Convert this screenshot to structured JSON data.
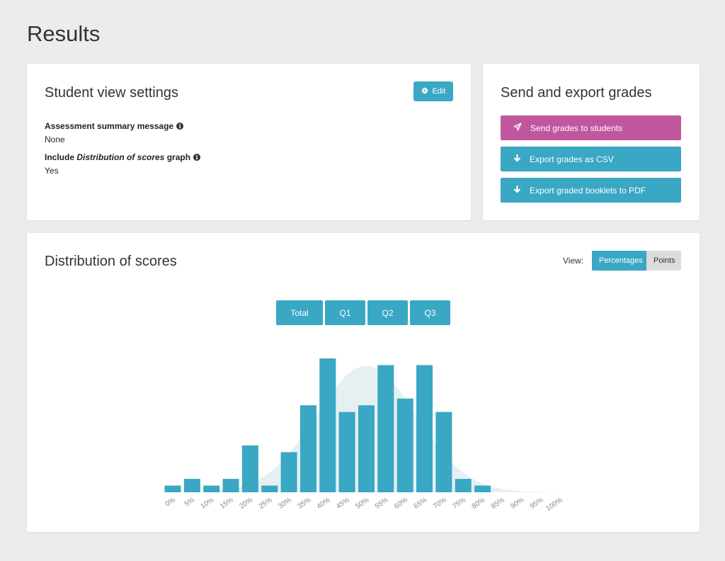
{
  "page": {
    "title": "Results"
  },
  "settings": {
    "title": "Student view settings",
    "edit_label": "Edit",
    "summary_label": "Assessment summary message",
    "summary_value": "None",
    "include_prefix": "Include ",
    "include_em": "Distribution of scores",
    "include_suffix": " graph",
    "include_value": "Yes"
  },
  "export": {
    "title": "Send and export grades",
    "send_label": "Send grades to students",
    "csv_label": "Export grades as CSV",
    "pdf_label": "Export graded booklets to PDF",
    "send_color": "#c0579e",
    "accent_color": "#3aa7c4"
  },
  "distribution": {
    "title": "Distribution of scores",
    "view_label": "View:",
    "view_options": [
      "Percentages",
      "Points"
    ],
    "view_selected": "Percentages",
    "tabs": [
      "Total",
      "Q1",
      "Q2",
      "Q3"
    ],
    "tab_selected": "Total"
  },
  "chart_data": {
    "type": "bar",
    "categories": [
      "0%",
      "5%",
      "10%",
      "15%",
      "20%",
      "25%",
      "30%",
      "35%",
      "40%",
      "45%",
      "50%",
      "55%",
      "60%",
      "65%",
      "70%",
      "75%",
      "80%",
      "85%",
      "90%",
      "95%",
      "100%"
    ],
    "values": [
      1,
      2,
      1,
      2,
      7,
      1,
      6,
      13,
      20,
      12,
      13,
      19,
      14,
      19,
      12,
      2,
      1,
      0,
      0,
      0,
      0
    ],
    "curve": {
      "type": "normal",
      "mean": 50,
      "sd": 13,
      "peak": 20
    },
    "bar_color": "#3aa7c4",
    "curve_color": "#e6f0f2",
    "ylim": [
      0,
      20
    ]
  }
}
